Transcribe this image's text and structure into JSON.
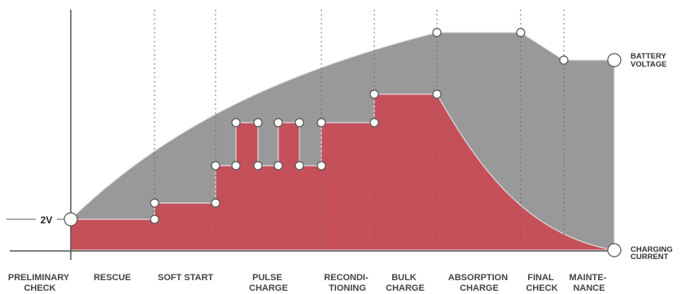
{
  "diagram": {
    "voltage_marker": "2V",
    "battery_voltage_label": [
      "BATTERY",
      "VOLTAGE"
    ],
    "charging_current_label": [
      "CHARGING",
      "CURRENT"
    ],
    "colors": {
      "voltage_area": "#999999",
      "current_area": "#c5505a",
      "axis": "#555555",
      "divider": "#666666"
    },
    "phases": [
      {
        "lines": [
          "PRELIMINARY",
          "CHECK"
        ]
      },
      {
        "lines": [
          "RESCUE"
        ]
      },
      {
        "lines": [
          "SOFT START"
        ]
      },
      {
        "lines": [
          "PULSE",
          "CHARGE"
        ]
      },
      {
        "lines": [
          "RECONDI-",
          "TIONING"
        ]
      },
      {
        "lines": [
          "BULK",
          "CHARGE"
        ]
      },
      {
        "lines": [
          "ABSORPTION",
          "CHARGE"
        ]
      },
      {
        "lines": [
          "FINAL",
          "CHECK"
        ]
      },
      {
        "lines": [
          "MAINTE-",
          "NANCE"
        ]
      }
    ]
  }
}
